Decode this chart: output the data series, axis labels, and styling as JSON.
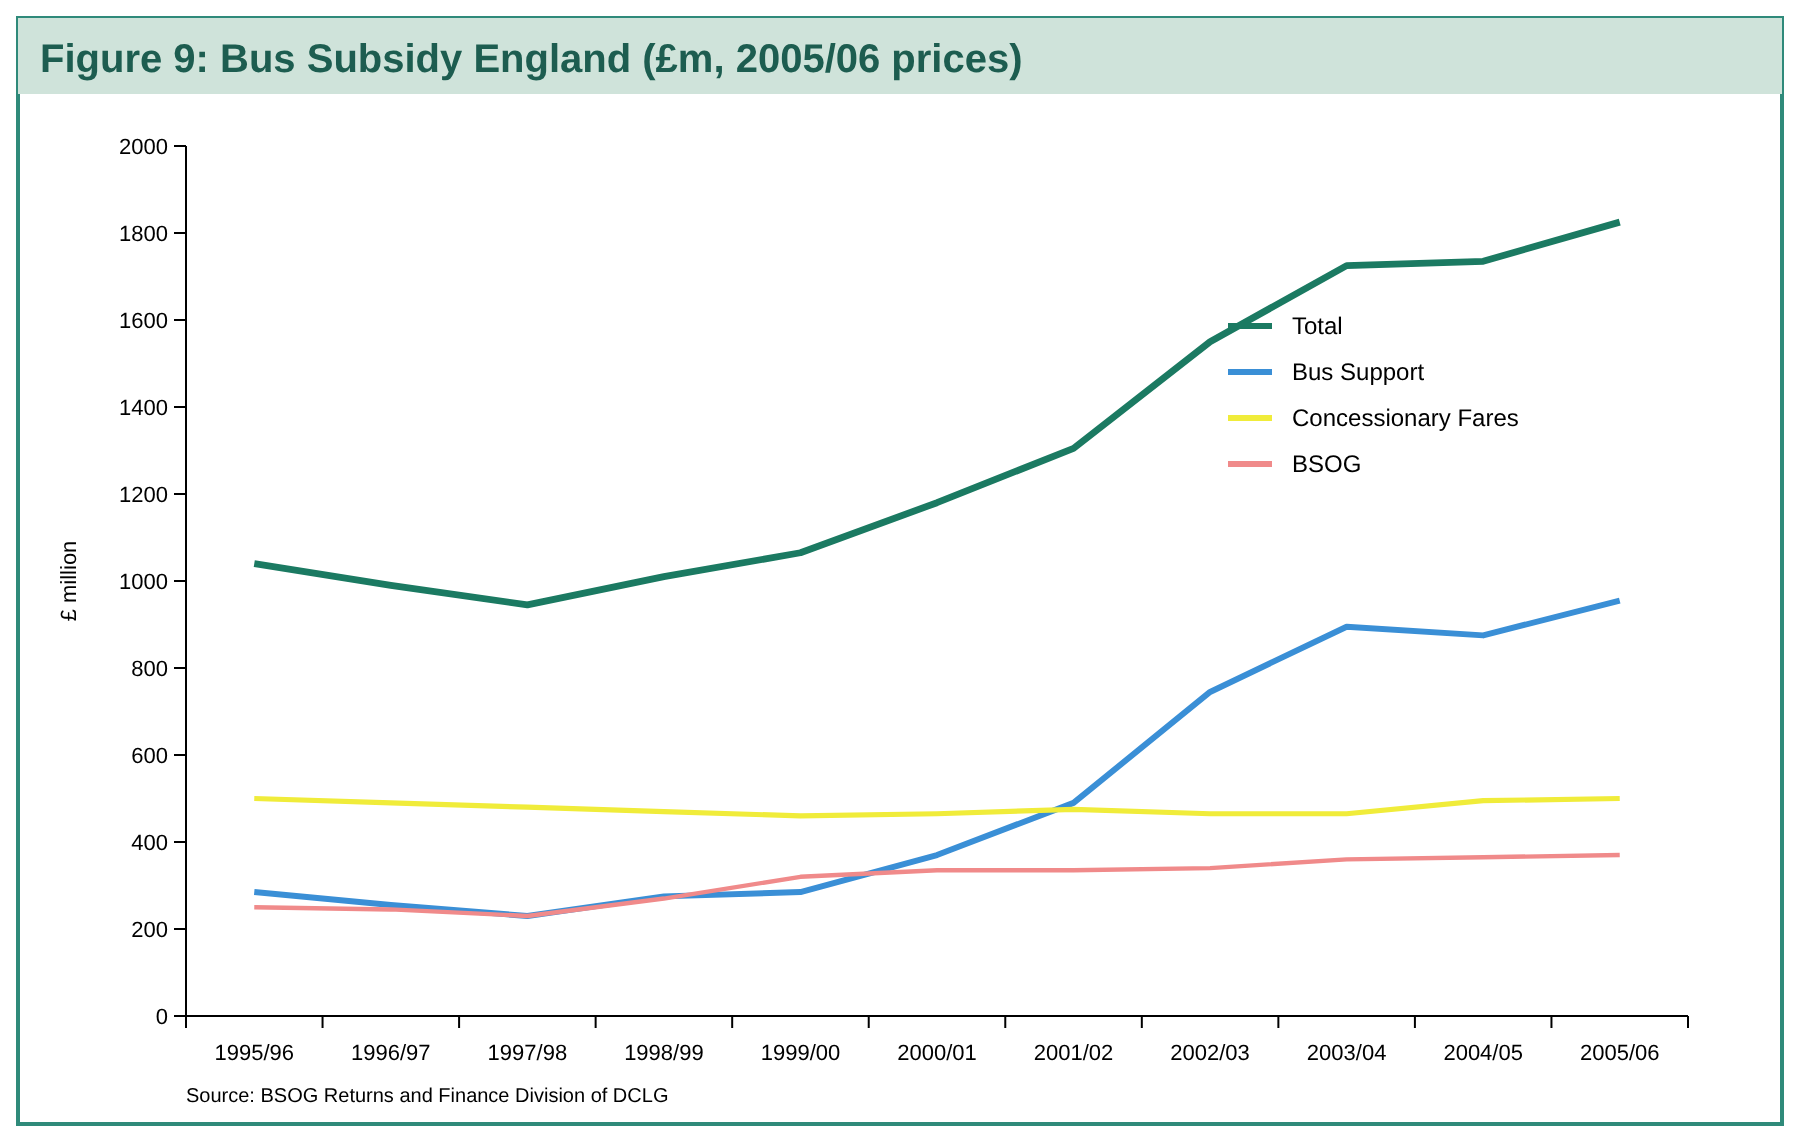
{
  "chart_data": {
    "type": "line",
    "title": "Figure 9: Bus Subsidy England (£m, 2005/06 prices)",
    "ylabel": "£ million",
    "categories": [
      "1995/96",
      "1996/97",
      "1997/98",
      "1998/99",
      "1999/00",
      "2000/01",
      "2001/02",
      "2002/03",
      "2003/04",
      "2004/05",
      "2005/06"
    ],
    "series": [
      {
        "name": "Total",
        "color": "#1b7a62",
        "values": [
          1040,
          990,
          945,
          1010,
          1065,
          1180,
          1305,
          1550,
          1725,
          1735,
          1825
        ]
      },
      {
        "name": "Bus Support",
        "color": "#3a8fd6",
        "values": [
          285,
          255,
          230,
          275,
          285,
          370,
          490,
          745,
          895,
          875,
          955
        ]
      },
      {
        "name": "Concessionary Fares",
        "color": "#f0ec3a",
        "values": [
          500,
          490,
          480,
          470,
          460,
          465,
          475,
          465,
          465,
          495,
          500
        ]
      },
      {
        "name": "BSOG",
        "color": "#f08a8a",
        "values": [
          250,
          245,
          230,
          270,
          320,
          335,
          335,
          340,
          360,
          365,
          370
        ]
      }
    ],
    "ylim": [
      0,
      2000
    ],
    "yticks": [
      0,
      200,
      400,
      600,
      800,
      1000,
      1200,
      1400,
      1600,
      1800,
      2000
    ],
    "grid": false,
    "legend": "top right",
    "marker": "none",
    "line_style": "solid",
    "annotations": [
      "Source: BSOG Returns and Finance Division of DCLG"
    ]
  }
}
